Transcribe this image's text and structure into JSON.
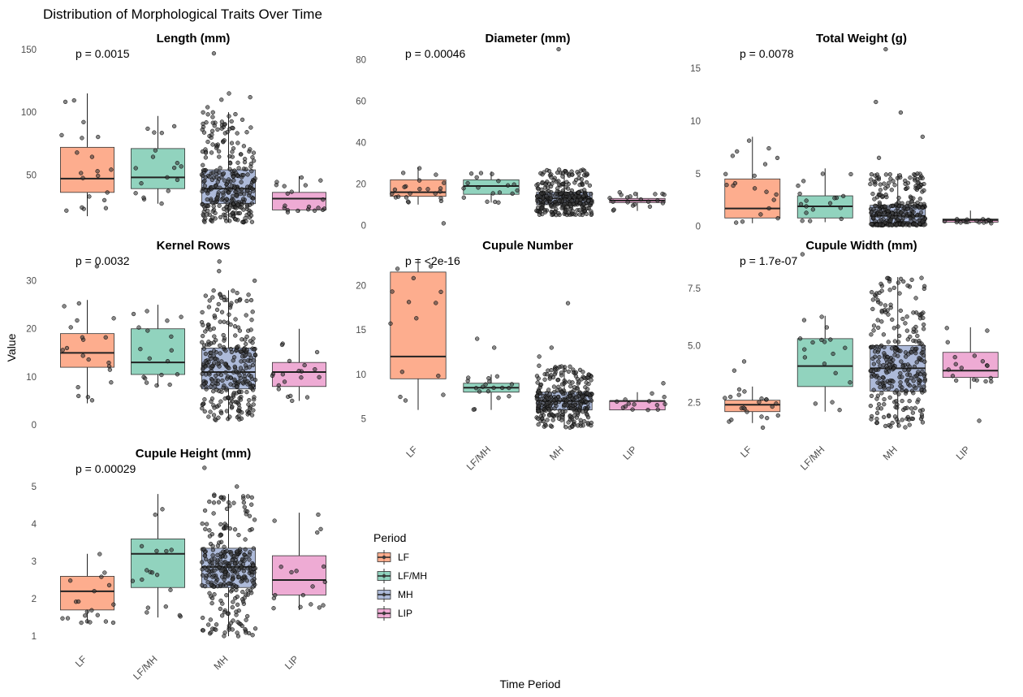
{
  "title": "Distribution of Morphological Traits Over Time",
  "xlabel": "Time Period",
  "ylabel": "Value",
  "legend": {
    "title": "Period",
    "items": [
      {
        "label": "LF",
        "color": "#FC8D62"
      },
      {
        "label": "LF/MH",
        "color": "#66C2A5"
      },
      {
        "label": "MH",
        "color": "#8DA0CB"
      },
      {
        "label": "LIP",
        "color": "#E78AC3"
      }
    ]
  },
  "chart_data": {
    "type": "boxplot",
    "categories": [
      "LF",
      "LF/MH",
      "MH",
      "LIP"
    ],
    "colors": [
      "#FC8D62",
      "#66C2A5",
      "#8DA0CB",
      "#E78AC3"
    ],
    "panels": [
      {
        "title": "Length (mm)",
        "pvalue": "p = 0.0015",
        "ylim": [
          8,
          152
        ],
        "yticks": [
          50,
          100,
          150
        ],
        "boxes": [
          {
            "q1": 36,
            "median": 47,
            "q3": 72,
            "whisker_low": 17,
            "whisker_high": 115,
            "n": 20
          },
          {
            "q1": 39,
            "median": 48,
            "q3": 71,
            "whisker_low": 27,
            "whisker_high": 97,
            "n": 18
          },
          {
            "q1": 27,
            "median": 39,
            "q3": 54,
            "whisker_low": 12,
            "whisker_high": 100,
            "n": 300,
            "outliers": [
              104,
              110,
              112,
              115,
              147
            ]
          },
          {
            "q1": 22,
            "median": 31,
            "q3": 36,
            "whisker_low": 20,
            "whisker_high": 49,
            "n": 20
          }
        ]
      },
      {
        "title": "Diameter (mm)",
        "pvalue": "p = 0.00046",
        "ylim": [
          -1,
          86
        ],
        "yticks": [
          0,
          20,
          40,
          60,
          80
        ],
        "boxes": [
          {
            "q1": 14,
            "median": 16,
            "q3": 22,
            "whisker_low": 10,
            "whisker_high": 28,
            "n": 22,
            "outliers": [
              1
            ]
          },
          {
            "q1": 15,
            "median": 19,
            "q3": 22,
            "whisker_low": 11,
            "whisker_high": 26,
            "n": 18
          },
          {
            "q1": 10,
            "median": 13,
            "q3": 16,
            "whisker_low": 5,
            "whisker_high": 27,
            "n": 300,
            "outliers": [
              85
            ]
          },
          {
            "q1": 11,
            "median": 12,
            "q3": 13,
            "whisker_low": 7,
            "whisker_high": 16,
            "n": 20
          }
        ]
      },
      {
        "title": "Total Weight (g)",
        "pvalue": "p = 0.0078",
        "ylim": [
          -0.1,
          17
        ],
        "yticks": [
          0,
          5,
          10,
          15
        ],
        "boxes": [
          {
            "q1": 0.8,
            "median": 1.7,
            "q3": 4.5,
            "whisker_low": 0.3,
            "whisker_high": 8.5,
            "n": 20
          },
          {
            "q1": 0.8,
            "median": 1.9,
            "q3": 2.9,
            "whisker_low": 0.4,
            "whisker_high": 5.5,
            "n": 18
          },
          {
            "q1": 0.3,
            "median": 1.0,
            "q3": 2.0,
            "whisker_low": 0.1,
            "whisker_high": 5.0,
            "n": 300,
            "outliers": [
              6.5,
              8.5,
              10.8,
              11.8,
              16.8
            ]
          },
          {
            "q1": 0.4,
            "median": 0.6,
            "q3": 0.7,
            "whisker_low": 0.3,
            "whisker_high": 1.5,
            "n": 18
          }
        ]
      },
      {
        "title": "Kernel Rows",
        "pvalue": "p = 0.0032",
        "ylim": [
          -1.5,
          35.5
        ],
        "yticks": [
          0,
          10,
          20,
          30
        ],
        "boxes": [
          {
            "q1": 12,
            "median": 15,
            "q3": 19,
            "whisker_low": 4.5,
            "whisker_high": 26,
            "n": 20,
            "outliers": [
              33
            ]
          },
          {
            "q1": 10.5,
            "median": 13,
            "q3": 20,
            "whisker_low": 8,
            "whisker_high": 25,
            "n": 18
          },
          {
            "q1": 7.5,
            "median": 11,
            "q3": 16,
            "whisker_low": 1,
            "whisker_high": 28,
            "n": 300,
            "outliers": [
              30,
              32,
              34
            ]
          },
          {
            "q1": 8,
            "median": 11,
            "q3": 13,
            "whisker_low": 5,
            "whisker_high": 20,
            "n": 20
          }
        ]
      },
      {
        "title": "Cupule Number",
        "pvalue": "p = <2e-16",
        "ylim": [
          3.5,
          23.5
        ],
        "yticks": [
          5,
          10,
          15,
          20
        ],
        "boxes": [
          {
            "q1": 9.5,
            "median": 12,
            "q3": 21.5,
            "whisker_low": 6,
            "whisker_high": 23,
            "n": 14
          },
          {
            "q1": 8,
            "median": 8.5,
            "q3": 9,
            "whisker_low": 6,
            "whisker_high": 10,
            "n": 18,
            "outliers": [
              13,
              14
            ]
          },
          {
            "q1": 6,
            "median": 7,
            "q3": 8,
            "whisker_low": 4,
            "whisker_high": 11,
            "n": 300,
            "outliers": [
              12,
              13,
              18
            ]
          },
          {
            "q1": 6,
            "median": 7,
            "q3": 7,
            "whisker_low": 6,
            "whisker_high": 8,
            "n": 14,
            "outliers": [
              9
            ]
          }
        ]
      },
      {
        "title": "Cupule Width (mm)",
        "pvalue": "p = 1.7e-07",
        "ylim": [
          1.2,
          9.0
        ],
        "yticks": [
          2.5,
          5.0,
          7.5
        ],
        "boxes": [
          {
            "q1": 2.1,
            "median": 2.4,
            "q3": 2.6,
            "whisker_low": 1.6,
            "whisker_high": 3.2,
            "n": 20,
            "outliers": [
              3.9,
              4.3,
              1.4
            ]
          },
          {
            "q1": 3.2,
            "median": 4.1,
            "q3": 5.3,
            "whisker_low": 2.1,
            "whisker_high": 6.3,
            "n": 18,
            "outliers": [
              9.0
            ]
          },
          {
            "q1": 3.0,
            "median": 4.0,
            "q3": 5.0,
            "whisker_low": 1.4,
            "whisker_high": 8.0,
            "n": 300
          },
          {
            "q1": 3.6,
            "median": 3.9,
            "q3": 4.7,
            "whisker_low": 3.1,
            "whisker_high": 5.8,
            "n": 18,
            "outliers": [
              1.7
            ]
          }
        ]
      },
      {
        "title": "Cupule Height (mm)",
        "pvalue": "p = 0.00029",
        "ylim": [
          0.85,
          5.65
        ],
        "yticks": [
          1,
          2,
          3,
          4,
          5
        ],
        "boxes": [
          {
            "q1": 1.7,
            "median": 2.2,
            "q3": 2.6,
            "whisker_low": 1.35,
            "whisker_high": 3.2,
            "n": 20
          },
          {
            "q1": 2.3,
            "median": 3.2,
            "q3": 3.6,
            "whisker_low": 1.5,
            "whisker_high": 4.8,
            "n": 18
          },
          {
            "q1": 2.3,
            "median": 2.85,
            "q3": 3.35,
            "whisker_low": 1.0,
            "whisker_high": 4.8,
            "n": 300,
            "outliers": [
              5.0,
              5.5
            ]
          },
          {
            "q1": 2.1,
            "median": 2.5,
            "q3": 3.15,
            "whisker_low": 1.7,
            "whisker_high": 4.3,
            "n": 18
          }
        ]
      }
    ]
  }
}
